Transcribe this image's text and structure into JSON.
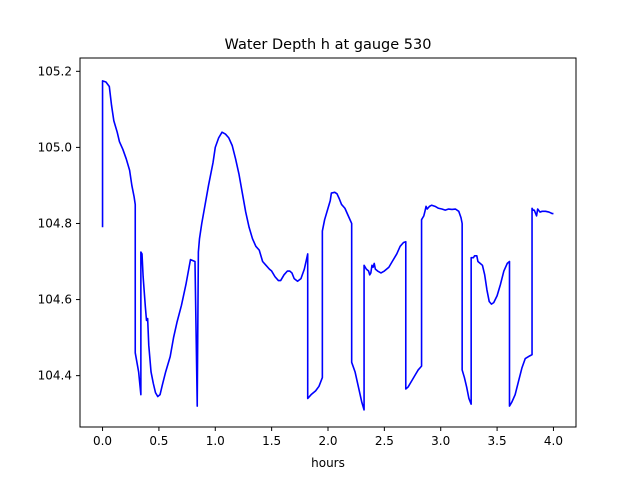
{
  "chart_data": {
    "type": "line",
    "title": "Water Depth h at gauge 530",
    "xlabel": "hours",
    "ylabel": "",
    "xlim": [
      -0.2,
      4.2
    ],
    "ylim": [
      104.265,
      105.235
    ],
    "xticks": [
      0.0,
      0.5,
      1.0,
      1.5,
      2.0,
      2.5,
      3.0,
      3.5,
      4.0
    ],
    "xtick_labels": [
      "0.0",
      "0.5",
      "1.0",
      "1.5",
      "2.0",
      "2.5",
      "3.0",
      "3.5",
      "4.0"
    ],
    "yticks": [
      104.4,
      104.6,
      104.8,
      105.0,
      105.2
    ],
    "ytick_labels": [
      "104.4",
      "104.6",
      "104.8",
      "105.0",
      "105.2"
    ],
    "grid": false,
    "series": [
      {
        "color": "#0000ff",
        "x": [
          0.0,
          0.0,
          0.03,
          0.06,
          0.08,
          0.1,
          0.13,
          0.15,
          0.18,
          0.21,
          0.24,
          0.26,
          0.28,
          0.29,
          0.29,
          0.32,
          0.34,
          0.34,
          0.35,
          0.36,
          0.38,
          0.39,
          0.4,
          0.41,
          0.43,
          0.45,
          0.47,
          0.49,
          0.51,
          0.53,
          0.56,
          0.6,
          0.63,
          0.66,
          0.7,
          0.74,
          0.78,
          0.82,
          0.84,
          0.84,
          0.85,
          0.85,
          0.86,
          0.88,
          0.91,
          0.94,
          0.98,
          1.0,
          1.03,
          1.06,
          1.09,
          1.12,
          1.15,
          1.18,
          1.21,
          1.24,
          1.27,
          1.3,
          1.33,
          1.36,
          1.39,
          1.42,
          1.45,
          1.48,
          1.5,
          1.53,
          1.56,
          1.58,
          1.61,
          1.64,
          1.66,
          1.68,
          1.7,
          1.73,
          1.76,
          1.79,
          1.82,
          1.82,
          1.85,
          1.89,
          1.92,
          1.95,
          1.95,
          1.97,
          2.0,
          2.02,
          2.03,
          2.06,
          2.08,
          2.1,
          2.12,
          2.15,
          2.18,
          2.21,
          2.21,
          2.24,
          2.27,
          2.3,
          2.32,
          2.32,
          2.34,
          2.36,
          2.37,
          2.38,
          2.39,
          2.4,
          2.41,
          2.42,
          2.44,
          2.47,
          2.5,
          2.54,
          2.57,
          2.61,
          2.64,
          2.67,
          2.69,
          2.69,
          2.71,
          2.74,
          2.77,
          2.8,
          2.83,
          2.83,
          2.84,
          2.85,
          2.86,
          2.87,
          2.88,
          2.9,
          2.92,
          2.95,
          2.98,
          3.01,
          3.04,
          3.07,
          3.1,
          3.13,
          3.16,
          3.18,
          3.19,
          3.19,
          3.21,
          3.23,
          3.25,
          3.27,
          3.27,
          3.29,
          3.3,
          3.32,
          3.33,
          3.35,
          3.37,
          3.39,
          3.41,
          3.43,
          3.45,
          3.47,
          3.5,
          3.53,
          3.56,
          3.59,
          3.61,
          3.61,
          3.63,
          3.66,
          3.69,
          3.72,
          3.75,
          3.79,
          3.81,
          3.81,
          3.82,
          3.83,
          3.85,
          3.86,
          3.88,
          3.9,
          3.93,
          3.96,
          3.99,
          4.0
        ],
        "y": [
          104.79,
          105.175,
          105.172,
          105.16,
          105.11,
          105.07,
          105.04,
          105.015,
          104.995,
          104.97,
          104.94,
          104.9,
          104.87,
          104.85,
          104.46,
          104.41,
          104.35,
          104.725,
          104.72,
          104.66,
          104.58,
          104.545,
          104.55,
          104.48,
          104.41,
          104.38,
          104.355,
          104.345,
          104.35,
          104.375,
          104.41,
          104.45,
          104.5,
          104.54,
          104.585,
          104.64,
          104.705,
          104.7,
          104.32,
          104.33,
          104.72,
          104.725,
          104.76,
          104.8,
          104.85,
          104.9,
          104.96,
          105.0,
          105.025,
          105.04,
          105.035,
          105.025,
          105.005,
          104.97,
          104.93,
          104.88,
          104.83,
          104.79,
          104.76,
          104.74,
          104.73,
          104.7,
          104.69,
          104.68,
          104.675,
          104.66,
          104.65,
          104.65,
          104.665,
          104.675,
          104.675,
          104.67,
          104.655,
          104.648,
          104.655,
          104.68,
          104.72,
          104.34,
          104.35,
          104.36,
          104.372,
          104.395,
          104.78,
          104.81,
          104.84,
          104.86,
          104.88,
          104.882,
          104.878,
          104.865,
          104.85,
          104.84,
          104.82,
          104.8,
          104.435,
          104.41,
          104.37,
          104.33,
          104.31,
          104.69,
          104.68,
          104.675,
          104.665,
          104.67,
          104.69,
          104.685,
          104.695,
          104.68,
          104.675,
          104.67,
          104.675,
          104.685,
          104.7,
          104.72,
          104.74,
          104.75,
          104.752,
          104.365,
          104.37,
          104.385,
          104.4,
          104.415,
          104.425,
          104.81,
          104.815,
          104.82,
          104.832,
          104.845,
          104.838,
          104.845,
          104.848,
          104.845,
          104.84,
          104.838,
          104.835,
          104.838,
          104.837,
          104.838,
          104.832,
          104.815,
          104.8,
          104.415,
          104.395,
          104.37,
          104.34,
          104.325,
          104.71,
          104.71,
          104.715,
          104.715,
          104.7,
          104.695,
          104.69,
          104.665,
          104.625,
          104.595,
          104.588,
          104.592,
          104.61,
          104.64,
          104.675,
          104.695,
          104.7,
          104.32,
          104.33,
          104.35,
          104.385,
          104.42,
          104.445,
          104.452,
          104.455,
          104.84,
          104.835,
          104.835,
          104.82,
          104.838,
          104.83,
          104.832,
          104.832,
          104.83,
          104.826,
          104.826
        ]
      }
    ]
  }
}
